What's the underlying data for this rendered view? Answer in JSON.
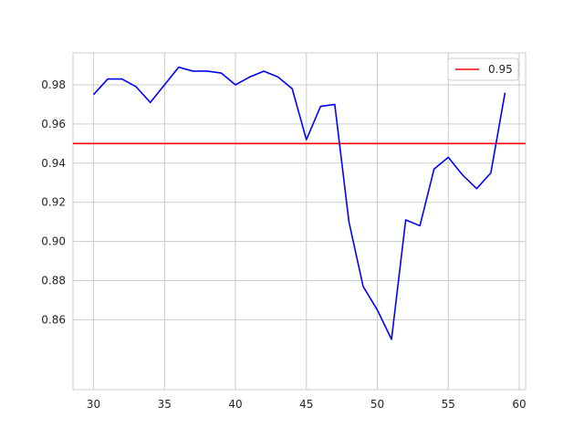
{
  "chart_data": {
    "type": "line",
    "title": "",
    "xlabel": "",
    "ylabel": "",
    "xlim": [
      28.55,
      60.45
    ],
    "ylim": [
      0.8243,
      0.9963
    ],
    "grid": true,
    "legend_position": "top-right",
    "x_ticks": [
      30,
      35,
      40,
      45,
      50,
      55,
      60
    ],
    "y_ticks": [
      0.86,
      0.88,
      0.9,
      0.92,
      0.94,
      0.96,
      0.98
    ],
    "x_tick_labels": [
      "30",
      "35",
      "40",
      "45",
      "50",
      "55",
      "60"
    ],
    "y_tick_labels": [
      "0.86",
      "0.88",
      "0.90",
      "0.92",
      "0.94",
      "0.96",
      "0.98"
    ],
    "series": [
      {
        "name": "",
        "color": "#0000ff",
        "x": [
          30,
          31,
          32,
          33,
          34,
          35,
          36,
          37,
          38,
          39,
          40,
          41,
          42,
          43,
          44,
          45,
          46,
          47,
          48,
          49,
          50,
          51,
          52,
          53,
          54,
          55,
          56,
          57,
          58,
          59
        ],
        "y": [
          0.975,
          0.983,
          0.983,
          0.979,
          0.971,
          0.98,
          0.989,
          0.987,
          0.987,
          0.986,
          0.98,
          0.984,
          0.987,
          0.984,
          0.978,
          0.952,
          0.969,
          0.97,
          0.91,
          0.877,
          0.865,
          0.85,
          0.911,
          0.908,
          0.937,
          0.943,
          0.934,
          0.927,
          0.935,
          0.976
        ]
      }
    ],
    "hlines": [
      {
        "name": "0.95",
        "y": 0.95,
        "color": "#ff0000"
      }
    ],
    "legend": [
      {
        "label": "0.95",
        "color": "#ff0000"
      }
    ]
  }
}
